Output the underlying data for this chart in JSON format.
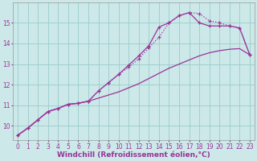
{
  "xlabel": "Windchill (Refroidissement éolien,°C)",
  "ylabel": "",
  "bg_color": "#cce8e8",
  "line_color": "#993399",
  "grid_color": "#99cccc",
  "xlim": [
    -0.5,
    23.5
  ],
  "ylim": [
    9.3,
    16.0
  ],
  "xticks": [
    0,
    1,
    2,
    3,
    4,
    5,
    6,
    7,
    8,
    9,
    10,
    11,
    12,
    13,
    14,
    15,
    16,
    17,
    18,
    19,
    20,
    21,
    22,
    23
  ],
  "yticks": [
    10,
    11,
    12,
    13,
    14,
    15
  ],
  "line1_x": [
    0,
    1,
    2,
    3,
    4,
    5,
    6,
    7,
    8,
    9,
    10,
    11,
    12,
    13,
    14,
    15,
    16,
    17,
    18,
    19,
    20,
    21,
    22,
    23
  ],
  "line1_y": [
    9.55,
    9.9,
    10.3,
    10.7,
    10.85,
    11.05,
    11.1,
    11.2,
    11.35,
    11.5,
    11.65,
    11.85,
    12.05,
    12.3,
    12.55,
    12.8,
    13.0,
    13.2,
    13.4,
    13.55,
    13.65,
    13.72,
    13.75,
    13.45
  ],
  "line2_x": [
    0,
    1,
    2,
    3,
    4,
    5,
    6,
    7,
    8,
    9,
    10,
    11,
    12,
    13,
    14,
    15,
    16,
    17,
    18,
    19,
    20,
    21,
    22,
    23
  ],
  "line2_y": [
    9.55,
    9.9,
    10.3,
    10.7,
    10.85,
    11.05,
    11.1,
    11.2,
    11.7,
    12.1,
    12.5,
    12.85,
    13.25,
    13.8,
    14.3,
    15.0,
    15.35,
    15.5,
    15.45,
    15.1,
    15.0,
    14.85,
    14.75,
    13.45
  ],
  "line3_x": [
    0,
    1,
    2,
    3,
    4,
    5,
    6,
    7,
    8,
    9,
    10,
    11,
    12,
    13,
    14,
    15,
    16,
    17,
    18,
    19,
    20,
    21,
    22,
    23
  ],
  "line3_y": [
    9.55,
    9.9,
    10.3,
    10.7,
    10.85,
    11.05,
    11.1,
    11.2,
    11.7,
    12.1,
    12.5,
    12.95,
    13.4,
    13.9,
    14.8,
    15.0,
    15.35,
    15.5,
    15.0,
    14.85,
    14.85,
    14.85,
    14.75,
    13.45
  ],
  "title_fontsize": 7,
  "xlabel_fontsize": 6.5,
  "tick_fontsize": 5.5
}
